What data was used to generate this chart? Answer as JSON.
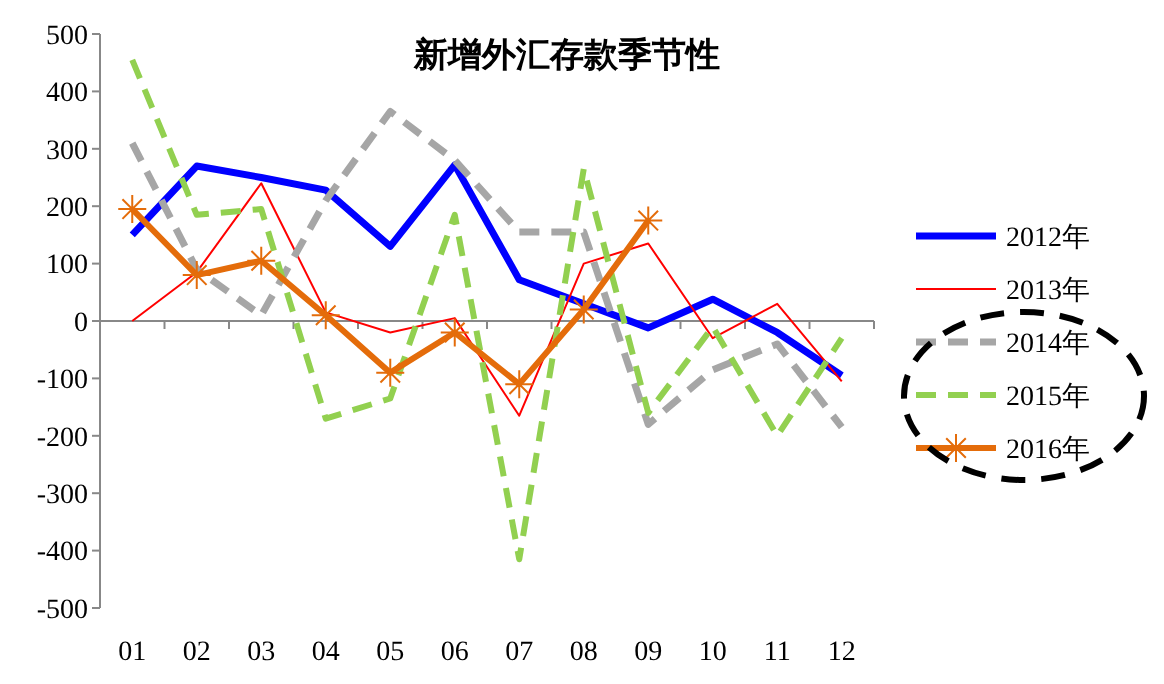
{
  "chart_data": {
    "type": "line",
    "title": "新增外汇存款季节性",
    "categories": [
      "01",
      "02",
      "03",
      "04",
      "05",
      "06",
      "07",
      "08",
      "09",
      "10",
      "11",
      "12"
    ],
    "ylim": [
      -500,
      500
    ],
    "yticks": [
      500,
      400,
      300,
      200,
      100,
      0,
      -100,
      -200,
      -300,
      -400,
      -500
    ],
    "legend": "right",
    "series": [
      {
        "name": "2012年",
        "color": "#0000ff",
        "line_style": "solid",
        "marker": "none",
        "values": [
          150,
          270,
          250,
          228,
          130,
          272,
          72,
          30,
          -12,
          38,
          -20,
          -95
        ]
      },
      {
        "name": "2013年",
        "color": "#ff0000",
        "line_style": "solid",
        "marker": "none",
        "values": [
          0,
          85,
          240,
          15,
          -20,
          5,
          -165,
          100,
          135,
          -30,
          30,
          -105
        ]
      },
      {
        "name": "2014年",
        "color": "#a6a6a6",
        "line_style": "dashed",
        "marker": "none",
        "values": [
          310,
          90,
          10,
          210,
          365,
          280,
          155,
          155,
          -180,
          -85,
          -40,
          -185
        ]
      },
      {
        "name": "2015年",
        "color": "#92d050",
        "line_style": "dashed",
        "marker": "none",
        "values": [
          455,
          185,
          195,
          -170,
          -135,
          185,
          -415,
          265,
          -160,
          -10,
          -200,
          -30
        ]
      },
      {
        "name": "2016年",
        "color": "#e46c0a",
        "line_style": "solid",
        "marker": "cross",
        "values": [
          195,
          80,
          105,
          10,
          -90,
          -20,
          -110,
          20,
          175,
          null,
          null,
          null
        ]
      }
    ]
  }
}
